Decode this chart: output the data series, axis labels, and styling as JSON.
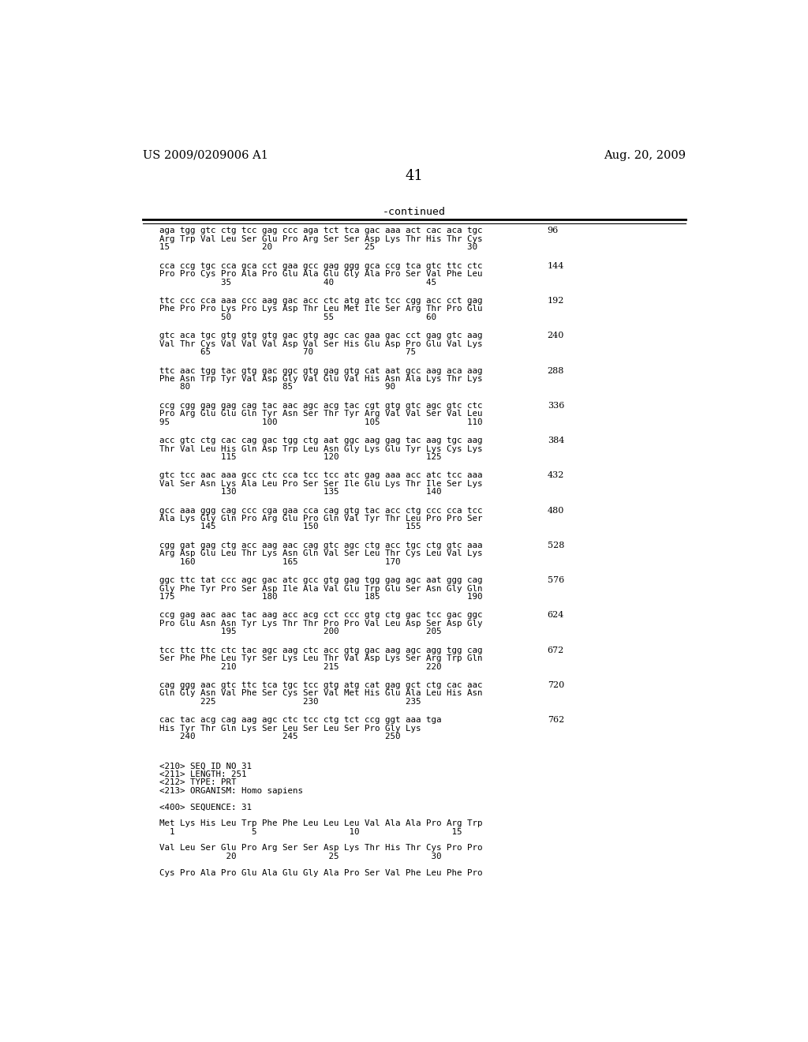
{
  "patent_left": "US 2009/0209006 A1",
  "patent_right": "Aug. 20, 2009",
  "page_number": "41",
  "continued_label": "-continued",
  "background_color": "#ffffff",
  "text_color": "#000000",
  "sequence_blocks": [
    {
      "dna": "aga tgg gtc ctg tcc gag ccc aga tct tca gac aaa act cac aca tgc",
      "aa": "Arg Trp Val Leu Ser Glu Pro Arg Ser Ser Asp Lys Thr His Thr Cys",
      "nums": "15                  20                  25                  30",
      "end_num": "96"
    },
    {
      "dna": "cca ccg tgc cca gca cct gaa gcc gag ggg gca ccg tca gtc ttc ctc",
      "aa": "Pro Pro Cys Pro Ala Pro Glu Ala Glu Gly Ala Pro Ser Val Phe Leu",
      "nums": "            35                  40                  45",
      "end_num": "144"
    },
    {
      "dna": "ttc ccc cca aaa ccc aag gac acc ctc atg atc tcc cgg acc cct gag",
      "aa": "Phe Pro Pro Lys Pro Lys Asp Thr Leu Met Ile Ser Arg Thr Pro Glu",
      "nums": "            50                  55                  60",
      "end_num": "192"
    },
    {
      "dna": "gtc aca tgc gtg gtg gtg gac gtg agc cac gaa gac cct gag gtc aag",
      "aa": "Val Thr Cys Val Val Val Asp Val Ser His Glu Asp Pro Glu Val Lys",
      "nums": "        65                  70                  75",
      "end_num": "240"
    },
    {
      "dna": "ttc aac tgg tac gtg gac ggc gtg gag gtg cat aat gcc aag aca aag",
      "aa": "Phe Asn Trp Tyr Val Asp Gly Val Glu Val His Asn Ala Lys Thr Lys",
      "nums": "    80                  85                  90",
      "end_num": "288"
    },
    {
      "dna": "ccg cgg gag gag cag tac aac agc acg tac cgt gtg gtc agc gtc ctc",
      "aa": "Pro Arg Glu Glu Gln Tyr Asn Ser Thr Tyr Arg Val Val Ser Val Leu",
      "nums": "95                  100                 105                 110",
      "end_num": "336"
    },
    {
      "dna": "acc gtc ctg cac cag gac tgg ctg aat ggc aag gag tac aag tgc aag",
      "aa": "Thr Val Leu His Gln Asp Trp Leu Asn Gly Lys Glu Tyr Lys Cys Lys",
      "nums": "            115                 120                 125",
      "end_num": "384"
    },
    {
      "dna": "gtc tcc aac aaa gcc ctc cca tcc tcc atc gag aaa acc atc tcc aaa",
      "aa": "Val Ser Asn Lys Ala Leu Pro Ser Ser Ile Glu Lys Thr Ile Ser Lys",
      "nums": "            130                 135                 140",
      "end_num": "432"
    },
    {
      "dna": "gcc aaa ggg cag ccc cga gaa cca cag gtg tac acc ctg ccc cca tcc",
      "aa": "Ala Lys Gly Gln Pro Arg Glu Pro Gln Val Tyr Thr Leu Pro Pro Ser",
      "nums": "        145                 150                 155",
      "end_num": "480"
    },
    {
      "dna": "cgg gat gag ctg acc aag aac cag gtc agc ctg acc tgc ctg gtc aaa",
      "aa": "Arg Asp Glu Leu Thr Lys Asn Gln Val Ser Leu Thr Cys Leu Val Lys",
      "nums": "    160                 165                 170",
      "end_num": "528"
    },
    {
      "dna": "ggc ttc tat ccc agc gac atc gcc gtg gag tgg gag agc aat ggg cag",
      "aa": "Gly Phe Tyr Pro Ser Asp Ile Ala Val Glu Trp Glu Ser Asn Gly Gln",
      "nums": "175                 180                 185                 190",
      "end_num": "576"
    },
    {
      "dna": "ccg gag aac aac tac aag acc acg cct ccc gtg ctg gac tcc gac ggc",
      "aa": "Pro Glu Asn Asn Tyr Lys Thr Thr Pro Pro Val Leu Asp Ser Asp Gly",
      "nums": "            195                 200                 205",
      "end_num": "624"
    },
    {
      "dna": "tcc ttc ttc ctc tac agc aag ctc acc gtg gac aag agc agg tgg cag",
      "aa": "Ser Phe Phe Leu Tyr Ser Lys Leu Thr Val Asp Lys Ser Arg Trp Gln",
      "nums": "            210                 215                 220",
      "end_num": "672"
    },
    {
      "dna": "cag ggg aac gtc ttc tca tgc tcc gtg atg cat gag gct ctg cac aac",
      "aa": "Gln Gly Asn Val Phe Ser Cys Ser Val Met His Glu Ala Leu His Asn",
      "nums": "        225                 230                 235",
      "end_num": "720"
    },
    {
      "dna": "cac tac acg cag aag agc ctc tcc ctg tct ccg ggt aaa tga",
      "aa": "His Tyr Thr Gln Lys Ser Leu Ser Leu Ser Pro Gly Lys",
      "nums": "    240                 245                 250",
      "end_num": "762"
    }
  ],
  "seq_info_lines": [
    "<210> SEQ ID NO 31",
    "<211> LENGTH: 251",
    "<212> TYPE: PRT",
    "<213> ORGANISM: Homo sapiens",
    "",
    "<400> SEQUENCE: 31",
    "",
    "Met Lys His Leu Trp Phe Phe Leu Leu Leu Val Ala Ala Pro Arg Trp",
    "  1               5                  10                  15",
    "",
    "Val Leu Ser Glu Pro Arg Ser Ser Asp Lys Thr His Thr Cys Pro Pro",
    "             20                  25                  30",
    "",
    "Cys Pro Ala Pro Glu Ala Glu Gly Ala Pro Ser Val Phe Leu Phe Pro"
  ]
}
